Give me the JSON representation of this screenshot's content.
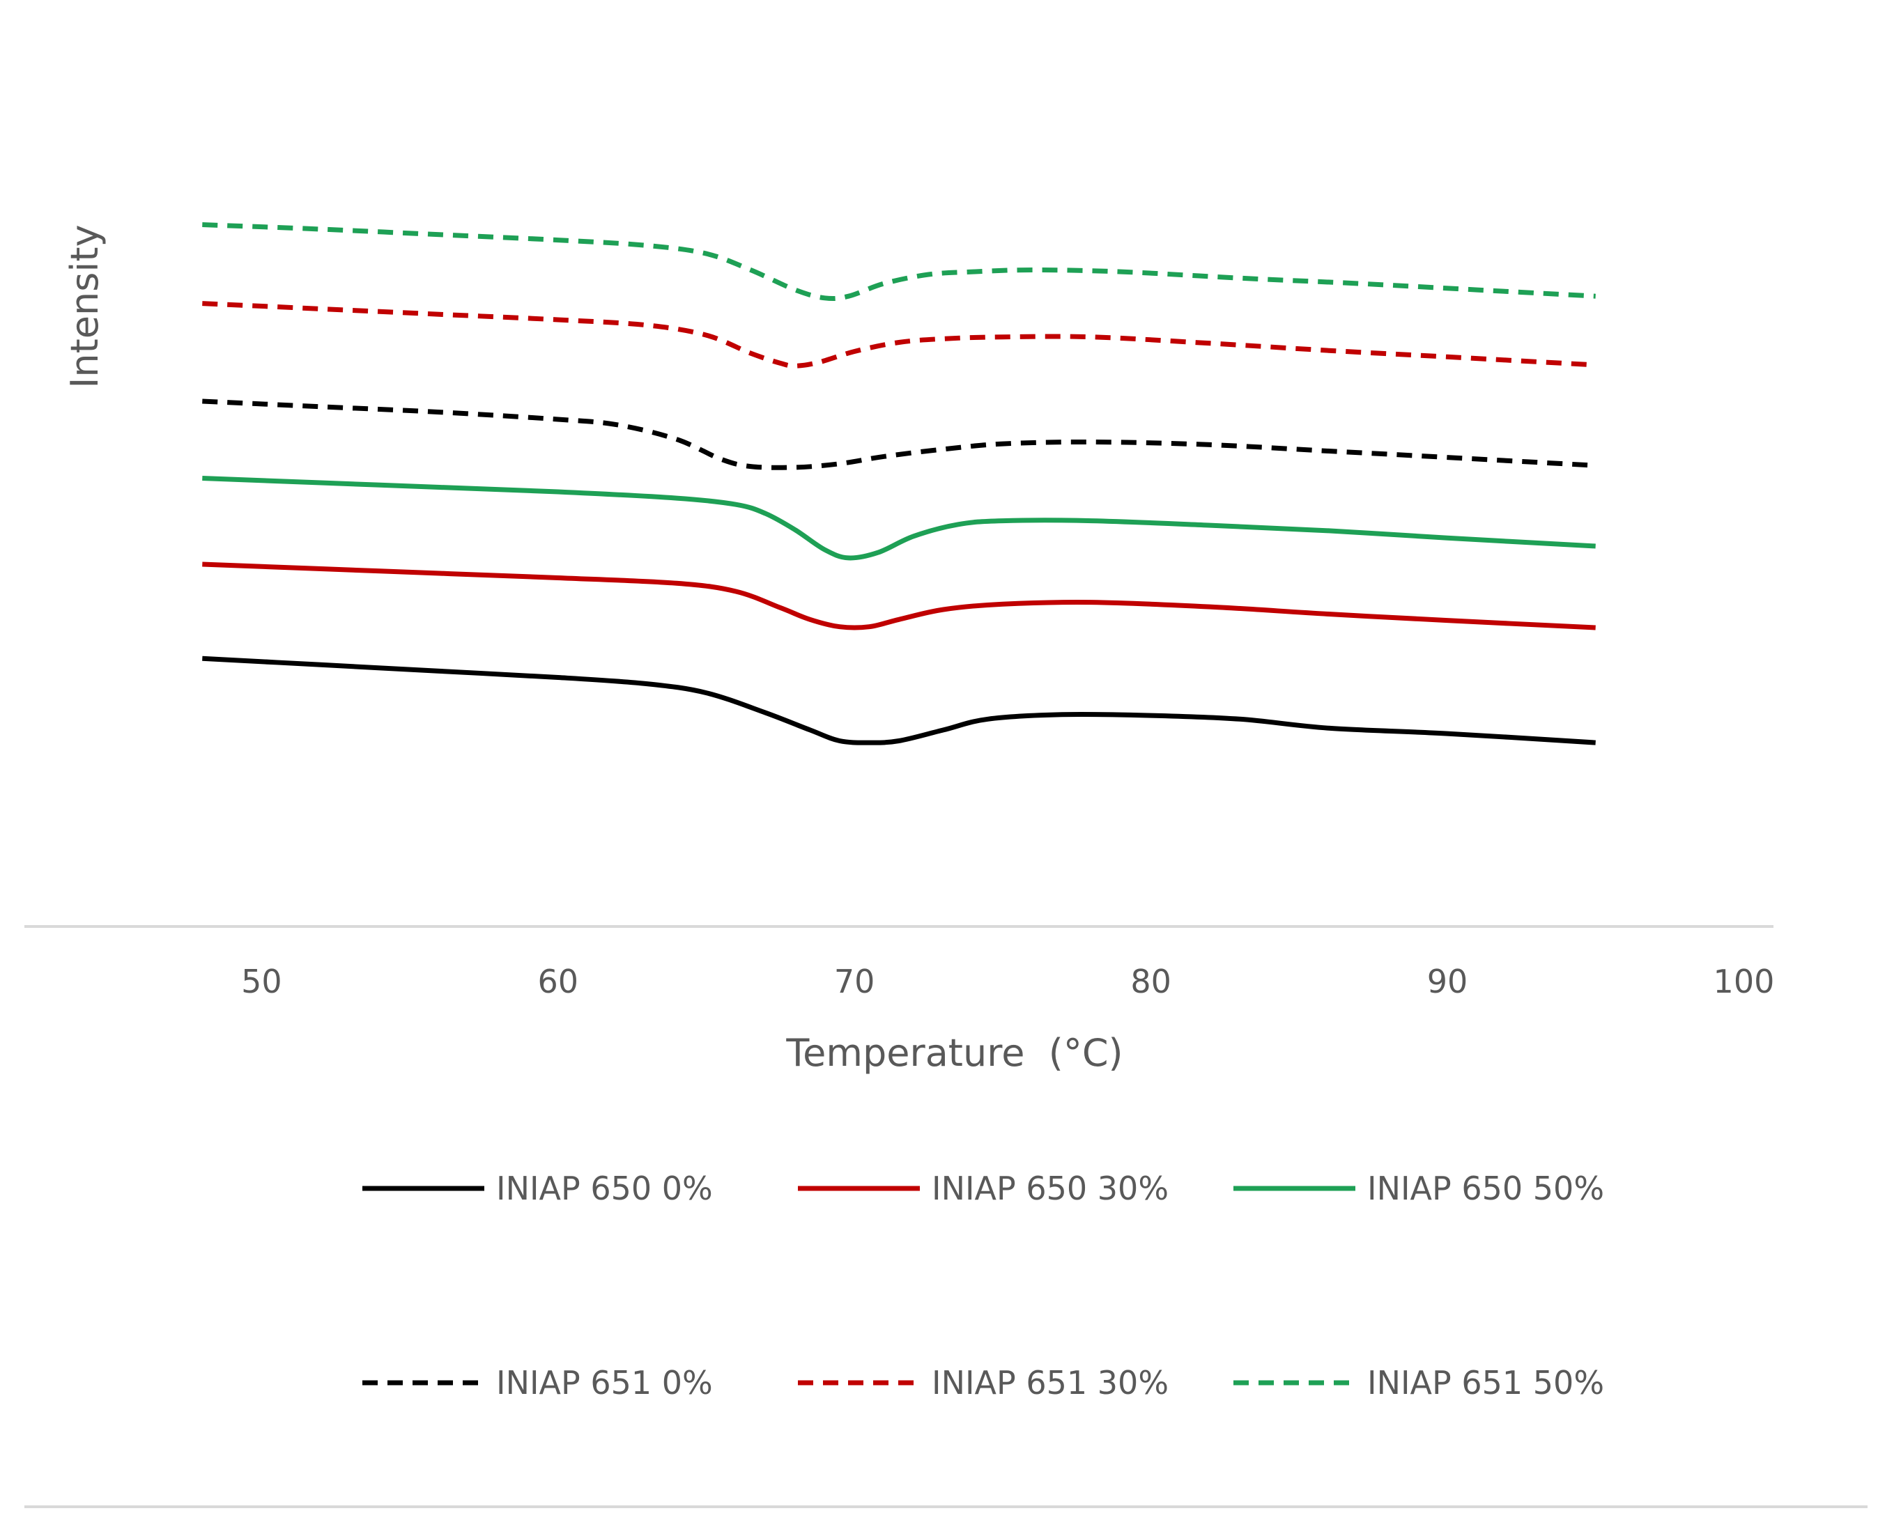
{
  "chart_data": {
    "type": "line",
    "title": "",
    "xlabel": "Temperature  (°C)",
    "ylabel": "Intensity",
    "xlim": [
      42,
      101
    ],
    "ylim": [
      0,
      100
    ],
    "xticks": [
      "50",
      "60",
      "70",
      "80",
      "90",
      "100"
    ],
    "grid": false,
    "legend_position": "bottom",
    "series": [
      {
        "name": "INIAP 650 0%",
        "color": "#000000",
        "style": "solid",
        "x": [
          48,
          52,
          56,
          60,
          63,
          65,
          67,
          68.5,
          69.5,
          70.5,
          71.5,
          73,
          74.5,
          77,
          80,
          83,
          86,
          90,
          95
        ],
        "y": [
          29.6,
          28.9,
          28.2,
          27.5,
          26.8,
          25.8,
          23.6,
          21.7,
          20.5,
          20.3,
          20.5,
          21.7,
          22.9,
          23.4,
          23.3,
          22.9,
          21.9,
          21.3,
          20.3
        ]
      },
      {
        "name": "INIAP 650 30%",
        "color": "#c00000",
        "style": "solid",
        "x": [
          48,
          52,
          56,
          60,
          64,
          66,
          67.5,
          68.5,
          69.5,
          70.5,
          71.5,
          73,
          75,
          78,
          82,
          86,
          90,
          95
        ],
        "y": [
          40.0,
          39.5,
          39.0,
          38.5,
          37.9,
          37.0,
          35.2,
          33.9,
          33.1,
          33.1,
          33.9,
          35.0,
          35.6,
          35.8,
          35.3,
          34.5,
          33.8,
          33.0
        ]
      },
      {
        "name": "INIAP 650 50%",
        "color": "#1ea055",
        "style": "solid",
        "x": [
          48,
          52,
          56,
          60,
          64,
          66,
          67,
          68,
          69,
          69.8,
          70.8,
          72,
          73.5,
          75,
          78,
          82,
          86,
          90,
          95
        ],
        "y": [
          49.5,
          49.0,
          48.5,
          48.0,
          47.3,
          46.6,
          45.6,
          43.8,
          41.6,
          40.7,
          41.3,
          43.1,
          44.4,
          44.8,
          44.8,
          44.3,
          43.7,
          42.9,
          42.0
        ]
      },
      {
        "name": "INIAP 651 0%",
        "color": "#000000",
        "style": "dashed",
        "x": [
          48,
          52,
          56,
          60,
          62,
          64,
          65.5,
          66.5,
          68,
          69.5,
          71,
          73,
          75,
          78,
          82,
          86,
          90,
          95
        ],
        "y": [
          58.0,
          57.4,
          56.8,
          56.0,
          55.4,
          53.8,
          51.6,
          50.8,
          50.7,
          51.1,
          51.9,
          52.7,
          53.3,
          53.5,
          53.2,
          52.5,
          51.8,
          50.9
        ]
      },
      {
        "name": "INIAP 651 30%",
        "color": "#c00000",
        "style": "dashed",
        "x": [
          48,
          52,
          56,
          60,
          63,
          65,
          66.5,
          67.5,
          68,
          68.8,
          70,
          71.5,
          73,
          75,
          78,
          82,
          86,
          90,
          95
        ],
        "y": [
          68.8,
          68.2,
          67.6,
          67.0,
          66.4,
          65.3,
          63.3,
          62.2,
          61.9,
          62.3,
          63.5,
          64.5,
          64.9,
          65.1,
          65.1,
          64.4,
          63.6,
          62.9,
          62.0
        ]
      },
      {
        "name": "INIAP 651 50%",
        "color": "#1ea055",
        "style": "dashed",
        "x": [
          48,
          52,
          56,
          60,
          63,
          65,
          66.5,
          68,
          69,
          69.8,
          71,
          72.5,
          74,
          76,
          79,
          83,
          87,
          91,
          95
        ],
        "y": [
          77.5,
          77.0,
          76.4,
          75.8,
          75.2,
          74.3,
          72.5,
          70.3,
          69.4,
          69.6,
          71.0,
          72.0,
          72.3,
          72.5,
          72.3,
          71.6,
          71.0,
          70.3,
          69.6
        ]
      }
    ]
  }
}
